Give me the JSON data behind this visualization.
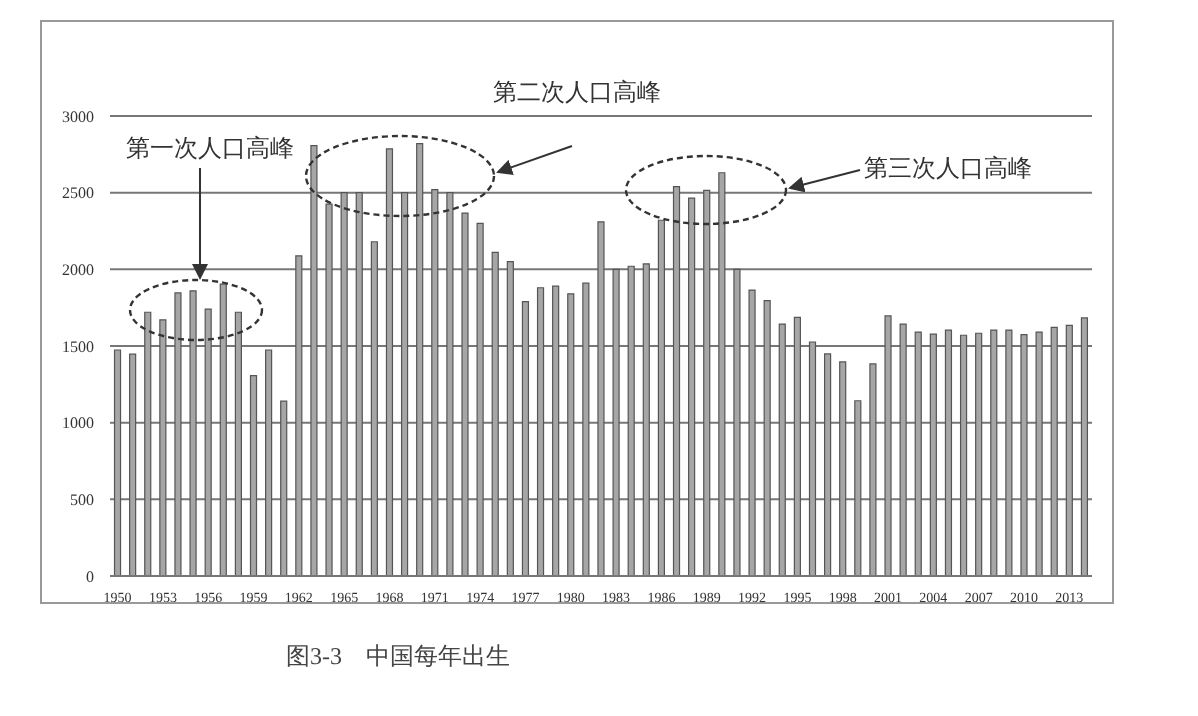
{
  "chart_data": {
    "type": "bar",
    "title": "第二次人口高峰",
    "categories": [
      "1950",
      null,
      null,
      "1953",
      null,
      null,
      "1956",
      null,
      null,
      "1959",
      null,
      null,
      "1962",
      null,
      null,
      "1965",
      null,
      null,
      "1968",
      null,
      null,
      "1971",
      null,
      null,
      "1974",
      null,
      null,
      "1977",
      null,
      null,
      "1980",
      null,
      null,
      "1983",
      null,
      null,
      "1986",
      null,
      null,
      "1989",
      null,
      null,
      "1992",
      null,
      null,
      "1995",
      null,
      null,
      "1998",
      null,
      null,
      "2001",
      null,
      null,
      "2004",
      null,
      null,
      "2007",
      null,
      null,
      "2010",
      null,
      null,
      "2013",
      null
    ],
    "series": [
      {
        "color": "#a6a6a6",
        "values": [
          1474,
          1447,
          1720,
          1671,
          1846,
          1860,
          1741,
          1904,
          1720,
          1307,
          1474,
          1140,
          2088,
          2807,
          2425,
          2500,
          2500,
          2180,
          2785,
          2500,
          2820,
          2520,
          2500,
          2367,
          2300,
          2110,
          2050,
          1790,
          1880,
          1890,
          1840,
          1910,
          2310,
          2000,
          2020,
          2035,
          2320,
          2540,
          2465,
          2515,
          2630,
          2000,
          1865,
          1796,
          1643,
          1687,
          1526,
          1448,
          1396,
          1143,
          1383,
          1696,
          1643,
          1591,
          1578,
          1604,
          1570,
          1583,
          1604,
          1604,
          1574,
          1591,
          1622,
          1635,
          1683
        ]
      }
    ],
    "ylim": [
      0,
      3000
    ],
    "yticks": [
      0,
      500,
      1000,
      1500,
      2000,
      2500,
      3000
    ],
    "grid": "y",
    "annotations": [
      "第一次人口高峰",
      "第三次人口高峰",
      "图3-3　中国每年出生"
    ]
  }
}
